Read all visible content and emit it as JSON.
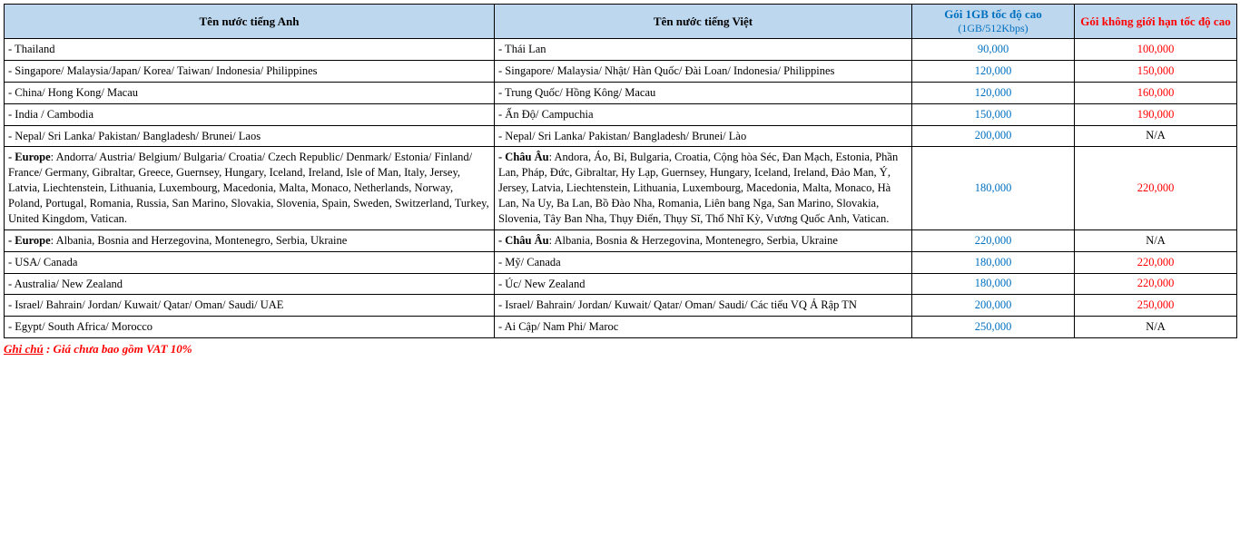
{
  "table": {
    "columns": {
      "en": "Tên nước tiếng Anh",
      "vi": "Tên nước tiếng Việt",
      "plan1": "Gói 1GB tốc độ cao",
      "plan1_sub": "(1GB/512Kbps)",
      "plan2": "Gói không giới hạn tốc độ cao"
    },
    "col_widths": {
      "en": 540,
      "vi": 460,
      "p1": 179,
      "p2": 179
    },
    "header_bg": "#bdd7ee",
    "plan1_color": "#0070c0",
    "plan2_color": "#ff0000",
    "rows": [
      {
        "en": "- Thailand",
        "vi": "- Thái Lan",
        "p1": "90,000",
        "p2": "100,000"
      },
      {
        "en": "- Singapore/ Malaysia/Japan/ Korea/ Taiwan/  Indonesia/ Philippines",
        "vi": "- Singapore/ Malaysia/ Nhật/ Hàn Quốc/ Đài Loan/ Indonesia/ Philippines",
        "p1": "120,000",
        "p2": "150,000"
      },
      {
        "en": "- China/ Hong Kong/ Macau",
        "vi": "- Trung Quốc/ Hồng Kông/ Macau",
        "p1": "120,000",
        "p2": "160,000"
      },
      {
        "en": "- India / Cambodia",
        "vi": "- Ấn Độ/ Campuchia",
        "p1": "150,000",
        "p2": "190,000"
      },
      {
        "en": "- Nepal/ Sri Lanka/ Pakistan/ Bangladesh/ Brunei/ Laos",
        "vi": "- Nepal/ Sri Lanka/ Pakistan/ Bangladesh/ Brunei/ Lào",
        "p1": "200,000",
        "p2": "N/A"
      },
      {
        "en_lead": "- Europe",
        "en_rest": ": Andorra/ Austria/ Belgium/ Bulgaria/ Croatia/  Czech Republic/ Denmark/ Estonia/ Finland/ France/ Germany, Gibraltar, Greece, Guernsey, Hungary, Iceland, Ireland, Isle of Man, Italy, Jersey, Latvia, Liechtenstein, Lithuania, Luxembourg, Macedonia, Malta, Monaco,  Netherlands, Norway, Poland, Portugal, Romania, Russia, San Marino, Slovakia, Slovenia, Spain, Sweden, Switzerland, Turkey, United Kingdom, Vatican.",
        "vi_lead": "- Châu Âu",
        "vi_rest": ": Andora, Áo, Bỉ, Bulgaria, Croatia, Cộng hòa Séc, Đan Mạch, Estonia, Phần Lan, Pháp, Đức, Gibraltar, Hy Lạp, Guernsey, Hungary, Iceland, Ireland, Đảo Man, Ý, Jersey, Latvia, Liechtenstein, Lithuania, Luxembourg, Macedonia, Malta, Monaco, Hà Lan, Na Uy, Ba Lan, Bồ Đào Nha, Romania, Liên bang Nga, San Marino, Slovakia, Slovenia, Tây Ban Nha, Thụy Điển, Thụy Sĩ, Thổ Nhĩ Kỳ, Vương Quốc Anh, Vatican.",
        "p1": "180,000",
        "p2": "220,000"
      },
      {
        "en_lead": "- Europe",
        "en_rest": ": Albania, Bosnia and Herzegovina, Montenegro, Serbia, Ukraine",
        "vi_lead": "- Châu Âu",
        "vi_rest": ": Albania, Bosnia & Herzegovina, Montenegro, Serbia, Ukraine",
        "p1": "220,000",
        "p2": "N/A"
      },
      {
        "en": "- USA/ Canada",
        "vi": "- Mỹ/ Canada",
        "p1": "180,000",
        "p2": "220,000"
      },
      {
        "en": "- Australia/ New Zealand",
        "vi": "- Úc/ New Zealand",
        "p1": "180,000",
        "p2": "220,000"
      },
      {
        "en": "- Israel/  Bahrain/ Jordan/ Kuwait/ Qatar/ Oman/ Saudi/ UAE",
        "vi": "- Israel/ Bahrain/ Jordan/ Kuwait/ Qatar/ Oman/ Saudi/ Các tiểu VQ Ả Rập TN",
        "p1": "200,000",
        "p2": "250,000"
      },
      {
        "en": "- Egypt/ South Africa/ Morocco",
        "vi": "- Ai Cập/ Nam Phi/ Maroc",
        "p1": "250,000",
        "p2": "N/A"
      }
    ]
  },
  "footnote": {
    "label": "Ghi chú",
    "text": " : Giá chưa bao gồm VAT 10%"
  }
}
